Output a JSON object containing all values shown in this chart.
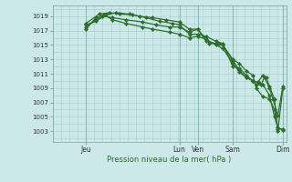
{
  "background_color": "#cce8e8",
  "grid_color": "#aacccc",
  "line_color": "#2d6e2d",
  "marker_color": "#2d6e2d",
  "xlabel": "Pression niveau de la mer( hPa )",
  "yticks": [
    1003,
    1005,
    1007,
    1009,
    1011,
    1013,
    1015,
    1017,
    1019
  ],
  "ylim": [
    1001.5,
    1020.5
  ],
  "xlim": [
    0,
    7
  ],
  "vline_positions": [
    1.0,
    3.8,
    4.35,
    5.4,
    6.9
  ],
  "xtick_positions": [
    1.0,
    3.8,
    4.35,
    5.4,
    6.9
  ],
  "xtick_labels": [
    "Jeu",
    "Lun",
    "Ven",
    "Sam",
    "Dim"
  ],
  "series": [
    [
      1.0,
      1017.8,
      1.3,
      1018.3,
      1.6,
      1019.2,
      1.9,
      1019.5,
      2.3,
      1019.3,
      2.6,
      1019.0,
      3.0,
      1018.8,
      3.4,
      1018.5,
      3.8,
      1018.2,
      4.1,
      1017.2,
      4.35,
      1017.2,
      4.7,
      1015.2,
      5.0,
      1015.2,
      5.1,
      1015.0,
      5.4,
      1013.0,
      5.6,
      1012.4,
      5.8,
      1011.4,
      6.0,
      1010.8,
      6.1,
      1009.0,
      6.3,
      1007.8,
      6.5,
      1007.5,
      6.65,
      1006.0,
      6.75,
      1003.3,
      6.9,
      1003.3
    ],
    [
      1.0,
      1018.0,
      1.4,
      1019.3,
      1.7,
      1019.5,
      2.0,
      1019.3,
      2.4,
      1019.2,
      2.8,
      1018.8,
      3.2,
      1018.3,
      3.6,
      1018.0,
      3.8,
      1017.8,
      4.1,
      1016.5,
      4.35,
      1016.5,
      4.6,
      1016.2,
      4.9,
      1015.5,
      5.1,
      1015.2,
      5.4,
      1012.0,
      5.6,
      1011.8,
      5.8,
      1010.8,
      6.0,
      1010.0,
      6.1,
      1009.5,
      6.25,
      1009.5,
      6.35,
      1010.5,
      6.5,
      1009.0,
      6.6,
      1007.5,
      6.75,
      1005.2,
      6.9,
      1009.2
    ],
    [
      1.0,
      1017.5,
      1.3,
      1018.5,
      1.5,
      1019.0,
      1.8,
      1018.8,
      2.2,
      1018.5,
      2.7,
      1018.2,
      3.1,
      1017.8,
      3.5,
      1017.5,
      3.8,
      1017.5,
      4.1,
      1016.8,
      4.35,
      1017.2,
      4.6,
      1015.5,
      4.9,
      1015.2,
      5.1,
      1015.0,
      5.4,
      1012.8,
      5.6,
      1011.5,
      5.8,
      1010.5,
      6.0,
      1010.0,
      6.15,
      1009.8,
      6.3,
      1009.5,
      6.5,
      1008.0,
      6.65,
      1005.0,
      6.75,
      1003.5,
      6.9,
      1003.2
    ],
    [
      1.0,
      1017.2,
      1.3,
      1018.8,
      1.55,
      1019.2,
      1.8,
      1018.5,
      2.2,
      1018.0,
      2.7,
      1017.5,
      3.0,
      1017.2,
      3.5,
      1016.8,
      3.8,
      1016.5,
      4.1,
      1016.0,
      4.35,
      1016.2,
      4.6,
      1015.8,
      4.9,
      1015.0,
      5.1,
      1014.5,
      5.4,
      1012.5,
      5.6,
      1011.2,
      5.8,
      1010.5,
      6.0,
      1010.0,
      6.15,
      1009.8,
      6.3,
      1010.8,
      6.4,
      1010.5,
      6.5,
      1009.2,
      6.65,
      1007.5,
      6.75,
      1003.0,
      6.9,
      1009.0
    ]
  ]
}
